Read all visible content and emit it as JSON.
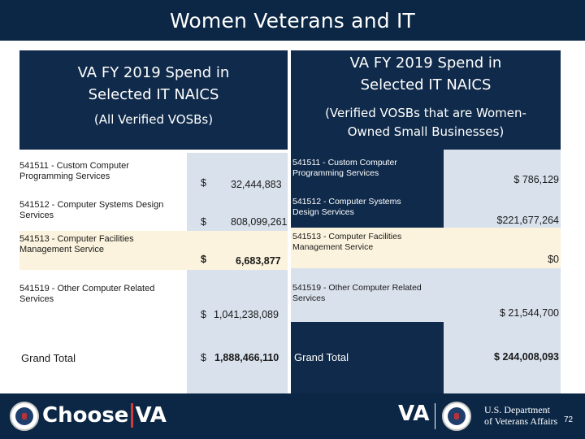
{
  "header": {
    "title": "Women Veterans and IT"
  },
  "left_panel": {
    "title_line1": "VA FY 2019 Spend in",
    "title_line2": "Selected IT NAICS",
    "subtitle": "(All Verified VOSBs)",
    "rows": [
      {
        "label_line1": "541511 - Custom Computer",
        "label_line2": "Programming Services",
        "currency": "$",
        "amount": "32,444,883"
      },
      {
        "label_line1": "541512 - Computer Systems Design",
        "label_line2": "Services",
        "currency": "$",
        "amount": "808,099,261"
      },
      {
        "label_line1": "541513 - Computer Facilities",
        "label_line2": "Management Service",
        "currency": "$",
        "amount": "6,683,877"
      },
      {
        "label_line1": "541519 - Other Computer Related",
        "label_line2": "Services",
        "currency": "$",
        "amount": "1,041,238,089"
      }
    ],
    "grand_label": "Grand Total",
    "grand_currency": "$",
    "grand_amount": "1,888,466,110"
  },
  "right_panel": {
    "title_line1": "VA FY 2019 Spend in",
    "title_line2": "Selected IT NAICS",
    "subtitle_line1": "(Verified VOSBs that are Women-",
    "subtitle_line2": "Owned Small Businesses)",
    "rows": [
      {
        "label_line1": "541511 - Custom Computer",
        "label_line2": "Programming Services",
        "amount": "$ 786,129"
      },
      {
        "label_line1": "541512 - Computer Systems",
        "label_line2": "Design Services",
        "amount": "$221,677,264"
      },
      {
        "label_line1": "541513 - Computer Facilities",
        "label_line2": "Management Service",
        "amount": "$0"
      },
      {
        "label_line1": "541519 - Other Computer Related",
        "label_line2": "Services",
        "amount": "$ 21,544,700"
      }
    ],
    "grand_label": "Grand Total",
    "grand_amount": "$ 244,008,093"
  },
  "footer": {
    "choose_text": "Choose",
    "va_text": "VA",
    "va_logo_text": "VA",
    "dept_line1": "U.S. Department",
    "dept_line2": "of Veterans Affairs",
    "page_number": "72"
  },
  "colors": {
    "navy": "#0b2745",
    "panel_navy": "#0f2a4a",
    "light_row": "#d9e1ec",
    "cream_row": "#fbf3dd",
    "choose_accent": "#d23a3a"
  }
}
